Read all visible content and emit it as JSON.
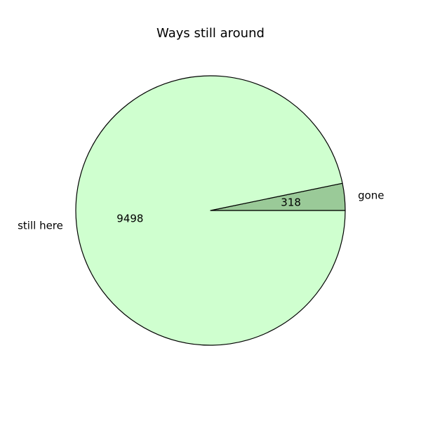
{
  "chart_data": {
    "type": "pie",
    "title": "Ways still around",
    "slices": [
      {
        "label": "gone",
        "value": 318,
        "value_label": "318",
        "color": "#9aca98"
      },
      {
        "label": "still here",
        "value": 9498,
        "value_label": "9498",
        "color": "#cfffcf"
      }
    ],
    "start_angle_deg": 0,
    "direction": "counterclockwise",
    "edge_color": "#000000"
  }
}
